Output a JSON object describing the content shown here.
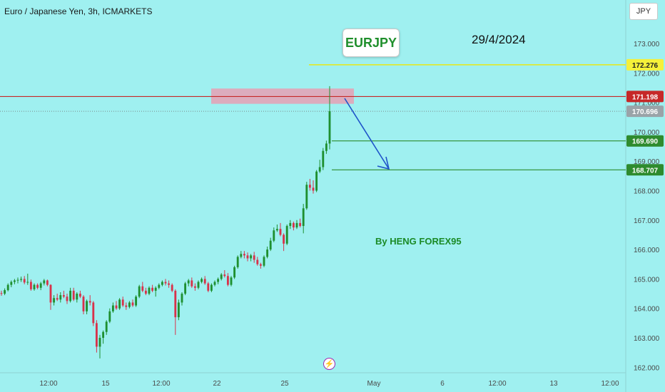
{
  "header": {
    "symbol_title": "Euro / Japanese Yen, 3h, ICMARKETS",
    "currency": "JPY"
  },
  "annotations": {
    "pair_badge": "EURJPY",
    "date": "29/4/2024",
    "author": "By HENG FOREX95",
    "event_icon": "lightning-bolt-icon"
  },
  "colors": {
    "background": "#9ff0f0",
    "up_candle": "#1e8f2f",
    "down_candle": "#d8324a",
    "resistance_line": "#c62828",
    "target_line": "#2e8b2e",
    "yellow_line": "#e8e816",
    "arrow": "#1e53c9",
    "zone": "#e6a0b4"
  },
  "chart_data": {
    "type": "candlestick",
    "title": "Euro / Japanese Yen, 3h, ICMARKETS",
    "y_axis": {
      "range": [
        161.9,
        173.9
      ],
      "ticks": [
        "173.000",
        "172.000",
        "171.000",
        "170.000",
        "169.000",
        "168.000",
        "167.000",
        "166.000",
        "165.000",
        "164.000",
        "163.000",
        "162.000"
      ]
    },
    "x_axis": {
      "ticks": [
        "12:00",
        "15",
        "12:00",
        "22",
        "25",
        "May",
        "6",
        "12:00",
        "13",
        "12:00"
      ]
    },
    "price_labels": [
      {
        "value": "172.276",
        "kind": "yellow"
      },
      {
        "value": "171.198",
        "kind": "resistance"
      },
      {
        "value": "170.696",
        "kind": "last"
      },
      {
        "value": "169.690",
        "kind": "target"
      },
      {
        "value": "168.707",
        "kind": "target"
      }
    ],
    "levels": {
      "yellow": 172.276,
      "resistance": 171.198,
      "last": 170.696,
      "target1": 169.69,
      "target2": 168.707,
      "zone": [
        170.95,
        171.47
      ]
    },
    "grid": false,
    "candles": [
      [
        164.52,
        164.6,
        164.43,
        164.5
      ],
      [
        164.5,
        164.68,
        164.45,
        164.62
      ],
      [
        164.62,
        164.85,
        164.58,
        164.8
      ],
      [
        164.8,
        164.95,
        164.72,
        164.9
      ],
      [
        164.9,
        165.0,
        164.82,
        164.95
      ],
      [
        164.95,
        165.05,
        164.85,
        164.97
      ],
      [
        164.97,
        165.08,
        164.9,
        165.0
      ],
      [
        165.0,
        165.1,
        164.82,
        164.88
      ],
      [
        164.88,
        165.18,
        164.8,
        164.9
      ],
      [
        164.9,
        164.98,
        164.6,
        164.65
      ],
      [
        164.65,
        164.85,
        164.6,
        164.8
      ],
      [
        164.8,
        164.85,
        164.65,
        164.7
      ],
      [
        164.7,
        164.9,
        164.62,
        164.85
      ],
      [
        164.85,
        165.0,
        164.78,
        164.95
      ],
      [
        164.95,
        164.98,
        164.75,
        164.8
      ],
      [
        164.8,
        164.82,
        163.95,
        164.2
      ],
      [
        164.2,
        164.45,
        164.1,
        164.35
      ],
      [
        164.35,
        164.5,
        164.25,
        164.3
      ],
      [
        164.3,
        164.55,
        164.2,
        164.45
      ],
      [
        164.45,
        164.6,
        164.35,
        164.4
      ],
      [
        164.4,
        164.5,
        164.15,
        164.25
      ],
      [
        164.25,
        164.7,
        164.2,
        164.6
      ],
      [
        164.6,
        164.7,
        164.25,
        164.3
      ],
      [
        164.3,
        164.55,
        164.2,
        164.5
      ],
      [
        164.5,
        164.6,
        164.35,
        164.4
      ],
      [
        164.4,
        164.45,
        163.8,
        163.9
      ],
      [
        163.9,
        164.3,
        163.8,
        164.25
      ],
      [
        164.25,
        164.45,
        164.1,
        164.2
      ],
      [
        164.2,
        164.25,
        163.4,
        163.5
      ],
      [
        163.5,
        163.6,
        162.5,
        162.7
      ],
      [
        162.7,
        163.1,
        162.3,
        163.0
      ],
      [
        163.0,
        163.25,
        162.8,
        163.2
      ],
      [
        163.2,
        163.6,
        163.1,
        163.55
      ],
      [
        163.55,
        164.0,
        163.5,
        163.9
      ],
      [
        163.9,
        164.2,
        163.85,
        164.1
      ],
      [
        164.1,
        164.25,
        163.95,
        164.0
      ],
      [
        164.0,
        164.35,
        163.95,
        164.3
      ],
      [
        164.3,
        164.4,
        164.05,
        164.1
      ],
      [
        164.1,
        164.2,
        163.95,
        164.05
      ],
      [
        164.05,
        164.25,
        164.0,
        164.2
      ],
      [
        164.2,
        164.3,
        164.05,
        164.1
      ],
      [
        164.1,
        164.45,
        164.05,
        164.4
      ],
      [
        164.4,
        164.8,
        164.35,
        164.75
      ],
      [
        164.75,
        164.9,
        164.55,
        164.6
      ],
      [
        164.6,
        164.7,
        164.45,
        164.5
      ],
      [
        164.5,
        164.75,
        164.45,
        164.7
      ],
      [
        164.7,
        164.8,
        164.55,
        164.6
      ],
      [
        164.6,
        164.75,
        164.4,
        164.7
      ],
      [
        164.7,
        164.85,
        164.65,
        164.8
      ],
      [
        164.8,
        164.95,
        164.75,
        164.9
      ],
      [
        164.9,
        165.0,
        164.78,
        164.85
      ],
      [
        164.85,
        164.95,
        164.7,
        164.8
      ],
      [
        164.8,
        164.85,
        164.55,
        164.6
      ],
      [
        164.6,
        164.65,
        163.1,
        163.7
      ],
      [
        163.7,
        164.3,
        163.6,
        164.2
      ],
      [
        164.2,
        164.55,
        164.1,
        164.5
      ],
      [
        164.5,
        164.9,
        164.45,
        164.85
      ],
      [
        164.85,
        165.0,
        164.75,
        164.95
      ],
      [
        164.95,
        165.05,
        164.7,
        164.75
      ],
      [
        164.75,
        164.85,
        164.6,
        164.7
      ],
      [
        164.7,
        164.95,
        164.65,
        164.9
      ],
      [
        164.9,
        165.05,
        164.85,
        165.0
      ],
      [
        165.0,
        165.1,
        164.8,
        164.85
      ],
      [
        164.85,
        164.9,
        164.55,
        164.6
      ],
      [
        164.6,
        164.85,
        164.55,
        164.8
      ],
      [
        164.8,
        164.95,
        164.75,
        164.9
      ],
      [
        164.9,
        165.05,
        164.82,
        165.0
      ],
      [
        165.0,
        165.2,
        164.95,
        165.15
      ],
      [
        165.15,
        165.3,
        165.05,
        165.1
      ],
      [
        165.1,
        165.2,
        164.75,
        164.8
      ],
      [
        164.8,
        165.1,
        164.75,
        165.05
      ],
      [
        165.05,
        165.45,
        165.0,
        165.4
      ],
      [
        165.4,
        165.8,
        165.35,
        165.75
      ],
      [
        165.75,
        165.95,
        165.7,
        165.85
      ],
      [
        165.85,
        165.95,
        165.7,
        165.8
      ],
      [
        165.8,
        165.9,
        165.6,
        165.7
      ],
      [
        165.7,
        165.85,
        165.6,
        165.8
      ],
      [
        165.8,
        165.92,
        165.55,
        165.65
      ],
      [
        165.65,
        165.75,
        165.45,
        165.5
      ],
      [
        165.5,
        165.55,
        165.35,
        165.45
      ],
      [
        165.45,
        165.8,
        165.4,
        165.75
      ],
      [
        165.75,
        166.1,
        165.7,
        166.0
      ],
      [
        166.0,
        166.4,
        165.95,
        166.3
      ],
      [
        166.3,
        166.75,
        166.25,
        166.65
      ],
      [
        166.65,
        166.85,
        166.6,
        166.7
      ],
      [
        166.7,
        166.9,
        166.45,
        166.5
      ],
      [
        166.5,
        166.55,
        165.95,
        166.2
      ],
      [
        166.2,
        166.85,
        166.15,
        166.8
      ],
      [
        166.8,
        167.0,
        166.7,
        166.9
      ],
      [
        166.9,
        166.95,
        166.65,
        166.75
      ],
      [
        166.75,
        167.0,
        166.7,
        166.9
      ],
      [
        166.9,
        167.05,
        166.75,
        166.8
      ],
      [
        166.8,
        167.55,
        166.55,
        167.4
      ],
      [
        167.4,
        168.3,
        167.35,
        168.2
      ],
      [
        168.2,
        168.4,
        168.0,
        168.1
      ],
      [
        168.1,
        168.35,
        167.9,
        168.0
      ],
      [
        168.0,
        168.7,
        167.95,
        168.65
      ],
      [
        168.65,
        169.05,
        168.6,
        168.8
      ],
      [
        168.8,
        169.45,
        168.7,
        169.35
      ],
      [
        169.35,
        169.7,
        169.25,
        169.6
      ],
      [
        169.6,
        171.55,
        169.4,
        170.7
      ]
    ]
  }
}
